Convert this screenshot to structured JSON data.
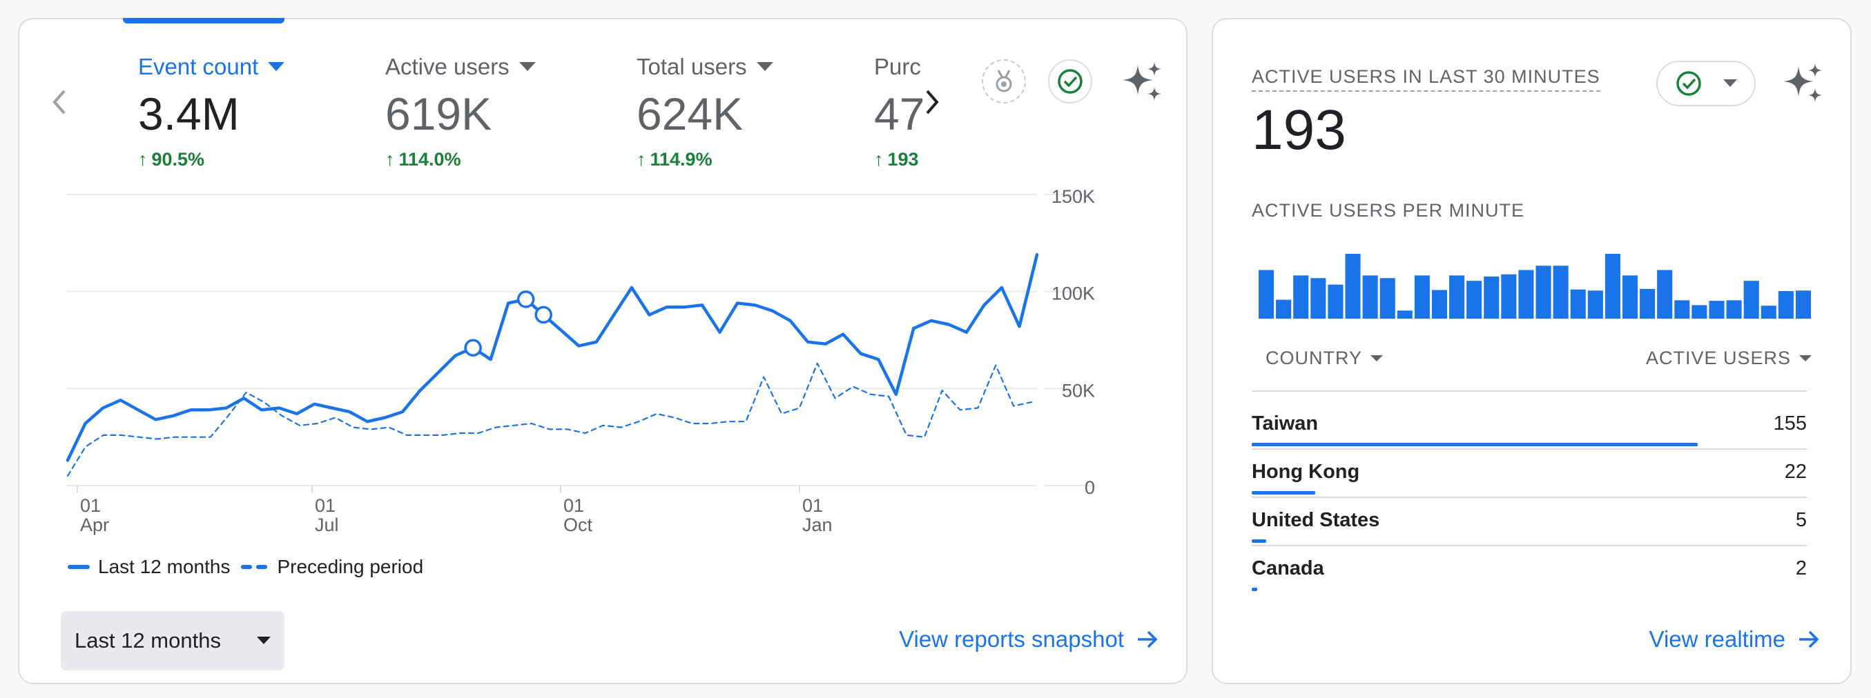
{
  "summary": {
    "metrics": [
      {
        "label": "Event count",
        "value": "3.4M",
        "change": "90.5%",
        "active": true
      },
      {
        "label": "Active users",
        "value": "619K",
        "change": "114.0%",
        "active": false
      },
      {
        "label": "Total users",
        "value": "624K",
        "change": "114.9%",
        "active": false
      },
      {
        "label": "Purc",
        "value": "47",
        "change": "193",
        "active": false
      }
    ],
    "legend": {
      "current": "Last 12 months",
      "previous": "Preceding period"
    },
    "date_range": "Last 12 months",
    "view_link": "View reports snapshot",
    "icons": {
      "prev": "chevron-left-icon",
      "next": "chevron-right-icon",
      "badge": "award-badge-icon",
      "check": "check-circle-icon",
      "sparkle": "sparkle-icon"
    },
    "colors": {
      "accent": "#1a73e8",
      "positive": "#188038"
    }
  },
  "chart_data": {
    "type": "line",
    "y_tick_labels": [
      "150K",
      "100K",
      "50K",
      "0"
    ],
    "ylim": [
      0,
      150000
    ],
    "x_tick_labels": [
      {
        "day": "01",
        "month": "Apr"
      },
      {
        "day": "01",
        "month": "Jul"
      },
      {
        "day": "01",
        "month": "Oct"
      },
      {
        "day": "01",
        "month": "Jan"
      }
    ],
    "grid": true,
    "legend_position": "bottom-left",
    "series": [
      {
        "name": "Last 12 months",
        "style": "solid",
        "values": [
          13000,
          32000,
          40000,
          44000,
          39000,
          34000,
          36000,
          39000,
          39000,
          40000,
          45000,
          39000,
          40000,
          37000,
          42000,
          40000,
          38000,
          33000,
          35000,
          38000,
          49000,
          58000,
          67000,
          71000,
          65000,
          94000,
          96000,
          88000,
          80000,
          72000,
          74000,
          88000,
          102000,
          88000,
          92000,
          92000,
          93000,
          79000,
          94000,
          93000,
          90000,
          85000,
          74000,
          73000,
          78000,
          68000,
          65000,
          47000,
          81000,
          85000,
          83000,
          79000,
          93000,
          102000,
          82000,
          119000
        ],
        "markers": [
          23,
          26,
          27
        ]
      },
      {
        "name": "Preceding period",
        "style": "dashed",
        "values": [
          5000,
          20000,
          26000,
          26000,
          25000,
          24000,
          25000,
          25000,
          25000,
          36000,
          48000,
          43000,
          36000,
          31000,
          32000,
          35000,
          30000,
          29000,
          30000,
          26000,
          26000,
          26000,
          27000,
          27000,
          30000,
          31000,
          32000,
          29000,
          29000,
          27000,
          31000,
          30000,
          33000,
          37000,
          35000,
          32000,
          32000,
          33000,
          33000,
          56000,
          37000,
          40000,
          63000,
          45000,
          51000,
          47000,
          46000,
          26000,
          25000,
          49000,
          39000,
          40000,
          62000,
          41000,
          43000
        ]
      }
    ]
  },
  "realtime": {
    "title": "ACTIVE USERS IN LAST 30 MINUTES",
    "value": "193",
    "per_minute_label": "ACTIVE USERS PER MINUTE",
    "per_minute_values": [
      9,
      3.5,
      8,
      7.5,
      6.3,
      12,
      8,
      7.5,
      1.5,
      8,
      5.3,
      8,
      7,
      7.8,
      8.2,
      9,
      9.8,
      9.8,
      5.4,
      5.2,
      12,
      8,
      5.5,
      9,
      3.4,
      2.5,
      3.3,
      3.4,
      7,
      2.4,
      5.1,
      5.2
    ],
    "table": {
      "col_country": "COUNTRY",
      "col_active": "ACTIVE USERS",
      "rows": [
        {
          "country": "Taiwan",
          "count": "155",
          "share": 0.803
        },
        {
          "country": "Hong Kong",
          "count": "22",
          "share": 0.114
        },
        {
          "country": "United States",
          "count": "5",
          "share": 0.026
        },
        {
          "country": "Canada",
          "count": "2",
          "share": 0.01
        }
      ]
    },
    "view_link": "View realtime"
  }
}
